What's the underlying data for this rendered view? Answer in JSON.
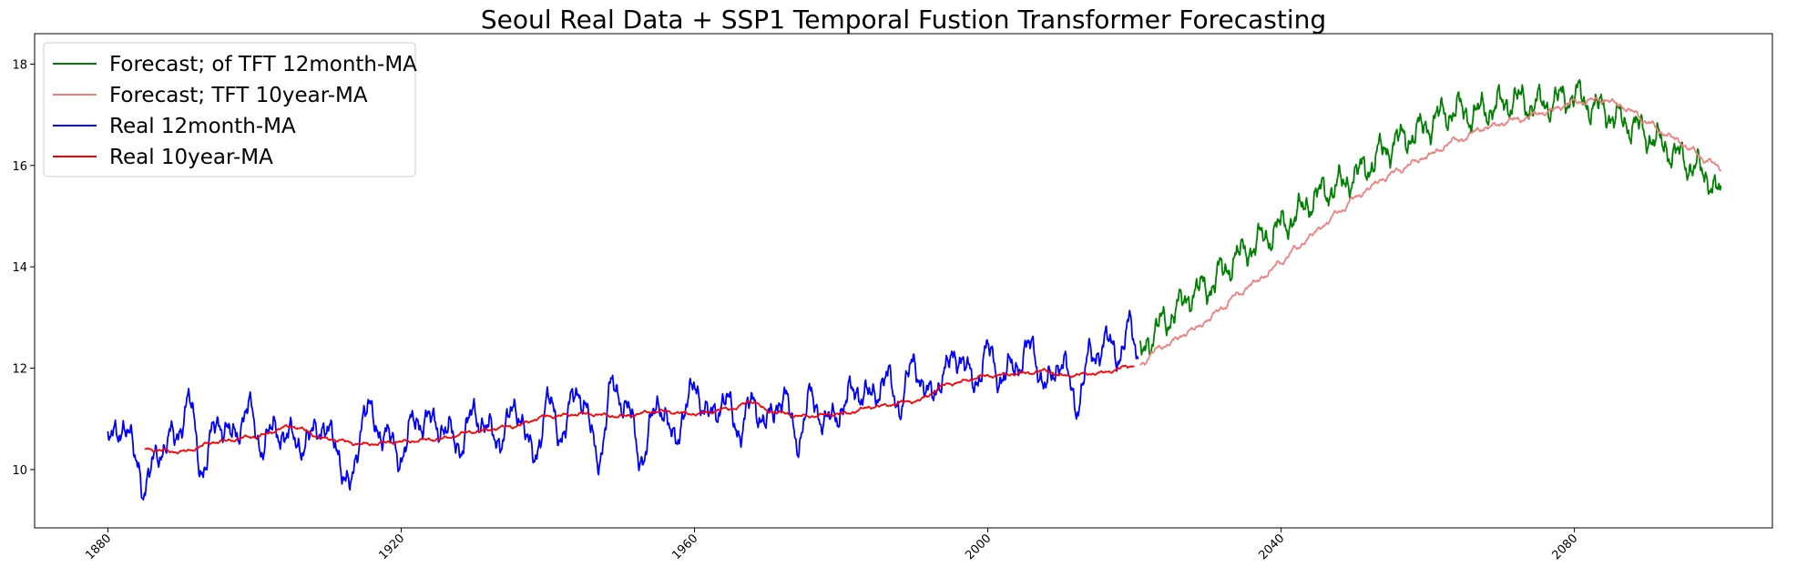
{
  "chart_data": {
    "type": "line",
    "title": "Seoul Real Data + SSP1 Temporal Fustion Transformer Forecasting",
    "xlabel": "",
    "ylabel": "",
    "xlim": [
      1870,
      2107
    ],
    "ylim": [
      8.85,
      18.6
    ],
    "x_ticks": [
      1880,
      1920,
      1960,
      2000,
      2040,
      2080
    ],
    "x_tick_labels": [
      "1880",
      "1920",
      "1960",
      "2000",
      "2040",
      "2080"
    ],
    "y_ticks": [
      10,
      12,
      14,
      16,
      18
    ],
    "y_tick_labels": [
      "10",
      "12",
      "14",
      "16",
      "18"
    ],
    "grid": false,
    "legend_position": "top-left",
    "series": [
      {
        "name": "Forecast; of TFT 12month-MA",
        "color": "#008000",
        "anchors": [
          [
            2020.8,
            12.2
          ],
          [
            2022,
            12.6
          ],
          [
            2024,
            12.9
          ],
          [
            2026,
            13.2
          ],
          [
            2028,
            13.5
          ],
          [
            2030,
            13.6
          ],
          [
            2032,
            13.9
          ],
          [
            2034,
            14.2
          ],
          [
            2036,
            14.4
          ],
          [
            2038,
            14.6
          ],
          [
            2040,
            14.8
          ],
          [
            2042,
            15.0
          ],
          [
            2044,
            15.3
          ],
          [
            2046,
            15.5
          ],
          [
            2048,
            15.6
          ],
          [
            2050,
            15.8
          ],
          [
            2052,
            16.0
          ],
          [
            2054,
            16.3
          ],
          [
            2056,
            16.5
          ],
          [
            2058,
            16.6
          ],
          [
            2060,
            16.8
          ],
          [
            2062,
            17.0
          ],
          [
            2064,
            17.1
          ],
          [
            2066,
            17.0
          ],
          [
            2068,
            17.1
          ],
          [
            2070,
            17.2
          ],
          [
            2072,
            17.3
          ],
          [
            2074,
            17.2
          ],
          [
            2076,
            17.2
          ],
          [
            2078,
            17.3
          ],
          [
            2080,
            17.4
          ],
          [
            2082,
            17.2
          ],
          [
            2084,
            17.1
          ],
          [
            2086,
            16.9
          ],
          [
            2088,
            16.8
          ],
          [
            2090,
            16.6
          ],
          [
            2092,
            16.4
          ],
          [
            2094,
            16.2
          ],
          [
            2096,
            16.0
          ],
          [
            2098,
            15.8
          ],
          [
            2100,
            15.4
          ]
        ],
        "amplitude": 0.38
      },
      {
        "name": "Forecast; TFT 10year-MA",
        "color": "#f08080",
        "anchors": [
          [
            2020.8,
            12.1
          ],
          [
            2024,
            12.45
          ],
          [
            2028,
            12.75
          ],
          [
            2030,
            12.95
          ],
          [
            2032,
            13.2
          ],
          [
            2034,
            13.45
          ],
          [
            2036,
            13.65
          ],
          [
            2038,
            13.85
          ],
          [
            2040,
            14.1
          ],
          [
            2042,
            14.35
          ],
          [
            2044,
            14.6
          ],
          [
            2046,
            14.85
          ],
          [
            2048,
            15.1
          ],
          [
            2050,
            15.35
          ],
          [
            2052,
            15.55
          ],
          [
            2054,
            15.75
          ],
          [
            2056,
            15.9
          ],
          [
            2058,
            16.05
          ],
          [
            2060,
            16.2
          ],
          [
            2064,
            16.5
          ],
          [
            2068,
            16.75
          ],
          [
            2072,
            16.9
          ],
          [
            2076,
            17.05
          ],
          [
            2080,
            17.25
          ],
          [
            2084,
            17.3
          ],
          [
            2086,
            17.2
          ],
          [
            2088,
            17.05
          ],
          [
            2090,
            16.85
          ],
          [
            2092,
            16.65
          ],
          [
            2094,
            16.5
          ],
          [
            2096,
            16.3
          ],
          [
            2098,
            16.1
          ],
          [
            2100,
            15.95
          ]
        ],
        "amplitude": 0.07
      },
      {
        "name": "Real 12month-MA",
        "color": "#0000ff",
        "anchors": [
          [
            1880,
            10.5
          ],
          [
            1882,
            10.9
          ],
          [
            1884,
            10.2
          ],
          [
            1885,
            9.6
          ],
          [
            1887,
            10.4
          ],
          [
            1889,
            10.6
          ],
          [
            1891,
            11.3
          ],
          [
            1893,
            10.0
          ],
          [
            1895,
            11.0
          ],
          [
            1897,
            10.6
          ],
          [
            1899,
            11.2
          ],
          [
            1901,
            10.5
          ],
          [
            1903,
            10.8
          ],
          [
            1905,
            10.6
          ],
          [
            1907,
            10.5
          ],
          [
            1909,
            10.9
          ],
          [
            1911,
            10.5
          ],
          [
            1913,
            9.6
          ],
          [
            1915,
            11.2
          ],
          [
            1917,
            10.8
          ],
          [
            1920,
            10.3
          ],
          [
            1922,
            11.0
          ],
          [
            1925,
            10.9
          ],
          [
            1928,
            10.5
          ],
          [
            1930,
            11.1
          ],
          [
            1933,
            10.6
          ],
          [
            1936,
            11.2
          ],
          [
            1938,
            10.2
          ],
          [
            1940,
            11.3
          ],
          [
            1942,
            10.7
          ],
          [
            1944,
            11.6
          ],
          [
            1947,
            10.3
          ],
          [
            1949,
            11.7
          ],
          [
            1951,
            11.1
          ],
          [
            1953,
            10.2
          ],
          [
            1955,
            11.4
          ],
          [
            1957,
            10.6
          ],
          [
            1959,
            11.2
          ],
          [
            1960,
            11.7
          ],
          [
            1962,
            11.0
          ],
          [
            1964,
            11.4
          ],
          [
            1966,
            10.8
          ],
          [
            1968,
            11.3
          ],
          [
            1970,
            10.9
          ],
          [
            1972,
            11.5
          ],
          [
            1974,
            10.6
          ],
          [
            1976,
            11.4
          ],
          [
            1978,
            10.9
          ],
          [
            1980,
            11.2
          ],
          [
            1982,
            11.6
          ],
          [
            1984,
            11.4
          ],
          [
            1986,
            11.8
          ],
          [
            1988,
            11.3
          ],
          [
            1990,
            12.1
          ],
          [
            1992,
            11.4
          ],
          [
            1994,
            11.9
          ],
          [
            1996,
            12.3
          ],
          [
            1998,
            11.7
          ],
          [
            2000,
            12.3
          ],
          [
            2002,
            11.8
          ],
          [
            2004,
            12.1
          ],
          [
            2006,
            12.4
          ],
          [
            2008,
            11.6
          ],
          [
            2010,
            12.2
          ],
          [
            2012,
            11.3
          ],
          [
            2014,
            12.2
          ],
          [
            2016,
            12.5
          ],
          [
            2018,
            12.3
          ],
          [
            2019.5,
            12.8
          ],
          [
            2020.5,
            12.3
          ]
        ],
        "amplitude": 0.38
      },
      {
        "name": "Real 10year-MA",
        "color": "#ff0000",
        "anchors": [
          [
            1885,
            10.4
          ],
          [
            1890,
            10.35
          ],
          [
            1895,
            10.55
          ],
          [
            1900,
            10.65
          ],
          [
            1905,
            10.85
          ],
          [
            1910,
            10.6
          ],
          [
            1915,
            10.5
          ],
          [
            1920,
            10.55
          ],
          [
            1925,
            10.6
          ],
          [
            1930,
            10.75
          ],
          [
            1935,
            10.85
          ],
          [
            1940,
            11.05
          ],
          [
            1945,
            11.1
          ],
          [
            1950,
            11.05
          ],
          [
            1955,
            11.15
          ],
          [
            1960,
            11.1
          ],
          [
            1965,
            11.2
          ],
          [
            1968,
            11.35
          ],
          [
            1970,
            11.15
          ],
          [
            1975,
            11.05
          ],
          [
            1980,
            11.1
          ],
          [
            1985,
            11.25
          ],
          [
            1990,
            11.35
          ],
          [
            1995,
            11.7
          ],
          [
            2000,
            11.85
          ],
          [
            2005,
            11.9
          ],
          [
            2008,
            11.95
          ],
          [
            2010,
            11.85
          ],
          [
            2015,
            11.9
          ],
          [
            2020,
            12.05
          ]
        ],
        "amplitude": 0.04
      }
    ]
  }
}
